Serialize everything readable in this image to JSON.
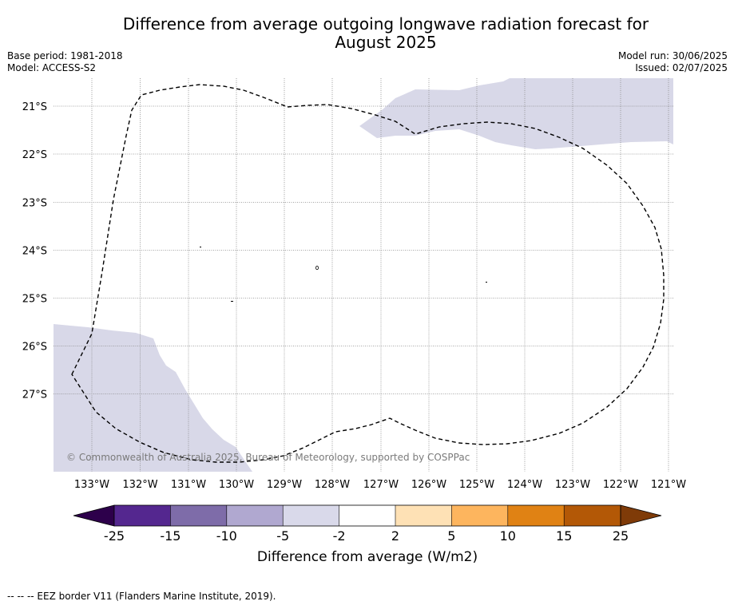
{
  "title_line1": "Difference from average outgoing longwave radiation forecast for",
  "title_line2": "August 2025",
  "base_period": "Base period: 1981-2018",
  "model": "Model: ACCESS-S2",
  "model_run": "Model run: 30/06/2025",
  "issued": "Issued: 02/07/2025",
  "copyright": "© Commonwealth of Australia 2025, Bureau of Meteorology, supported by COSPPac",
  "footnote": "--  --  -- EEZ border V11 (Flanders Marine Institute, 2019).",
  "colors": {
    "ocean_background": "#ffffff",
    "anomaly_fill": "#d8d8e8",
    "gridline": "#888888",
    "eez_border": "#000000"
  },
  "map": {
    "lon_labels": [
      "133°W",
      "132°W",
      "131°W",
      "130°W",
      "129°W",
      "128°W",
      "127°W",
      "126°W",
      "125°W",
      "124°W",
      "123°W",
      "122°W",
      "121°W"
    ],
    "lat_labels": [
      "21°S",
      "22°S",
      "23°S",
      "24°S",
      "25°S",
      "26°S",
      "27°S"
    ]
  },
  "colorbar": {
    "title": "Difference from average (W/m2)",
    "tick_labels": [
      "-25",
      "-15",
      "-10",
      "-5",
      "-2",
      "2",
      "5",
      "10",
      "15",
      "25"
    ],
    "bin_colors": [
      "#54278f",
      "#7e6ca9",
      "#b0a8d0",
      "#d9d9ea",
      "#ffffff",
      "#fee1b5",
      "#fdb55e",
      "#e08214",
      "#b35806"
    ],
    "under_color": "#2d004b",
    "over_color": "#7f3b08"
  }
}
